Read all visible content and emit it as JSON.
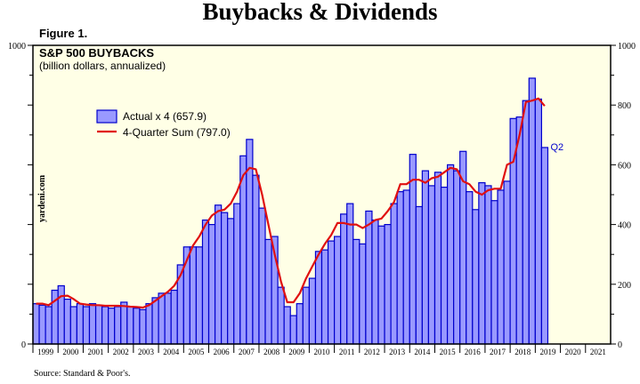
{
  "header": {
    "title": "Buybacks & Dividends",
    "figure_label": "Figure 1."
  },
  "footer": {
    "source": "Source: Standard & Poor's."
  },
  "watermark": "yardeni.com",
  "colors": {
    "bar_fill": "#9999ff",
    "bar_stroke": "#0000cc",
    "line": "#e01010",
    "plot_bg": "#ffffe6"
  },
  "chart_data": {
    "type": "bar",
    "title": "S&P 500 BUYBACKS",
    "subtitle": "(billion dollars, annualized)",
    "ylim": [
      0,
      1000
    ],
    "yticks": [
      0,
      200,
      400,
      600,
      800,
      1000
    ],
    "left_yticks": [
      0,
      1000
    ],
    "x_years": [
      "1999",
      "2000",
      "2001",
      "2002",
      "2003",
      "2004",
      "2005",
      "2006",
      "2007",
      "2008",
      "2009",
      "2010",
      "2011",
      "2012",
      "2013",
      "2014",
      "2015",
      "2016",
      "2017",
      "2018",
      "2019",
      "2020",
      "2021"
    ],
    "annotation": "Q2",
    "legend_placement": "top-left",
    "series": [
      {
        "name": "Actual x 4 (657.9)",
        "type": "bar",
        "start": "1999Q1",
        "values": [
          135,
          130,
          125,
          180,
          195,
          150,
          125,
          135,
          125,
          135,
          130,
          125,
          120,
          125,
          140,
          125,
          120,
          115,
          135,
          155,
          170,
          170,
          180,
          265,
          325,
          325,
          325,
          415,
          400,
          465,
          440,
          420,
          470,
          630,
          685,
          565,
          455,
          350,
          360,
          190,
          125,
          95,
          135,
          190,
          220,
          310,
          315,
          345,
          360,
          435,
          470,
          350,
          335,
          445,
          415,
          395,
          400,
          470,
          510,
          515,
          635,
          460,
          580,
          530,
          575,
          525,
          600,
          580,
          645,
          510,
          450,
          540,
          530,
          480,
          515,
          545,
          755,
          760,
          815,
          890,
          820,
          657.9
        ]
      },
      {
        "name": "4-Quarter Sum (797.0)",
        "type": "line",
        "start": "1999Q1",
        "values": [
          135,
          135,
          130,
          145,
          160,
          162,
          150,
          135,
          132,
          130,
          130,
          128,
          128,
          128,
          127,
          125,
          124,
          122,
          130,
          145,
          160,
          175,
          195,
          230,
          280,
          330,
          360,
          400,
          430,
          445,
          450,
          470,
          510,
          565,
          590,
          585,
          500,
          400,
          300,
          210,
          140,
          140,
          170,
          220,
          260,
          300,
          335,
          365,
          405,
          405,
          400,
          400,
          388,
          400,
          415,
          420,
          445,
          475,
          535,
          535,
          550,
          550,
          540,
          555,
          560,
          575,
          590,
          585,
          545,
          535,
          510,
          500,
          515,
          520,
          520,
          600,
          610,
          700,
          810,
          815,
          822,
          797.0
        ]
      }
    ]
  }
}
